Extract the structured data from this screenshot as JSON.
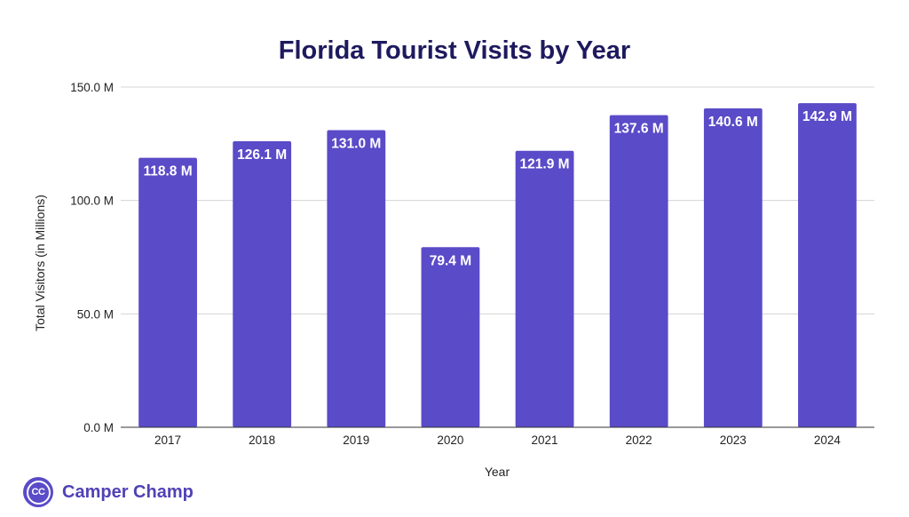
{
  "chart_data": {
    "type": "bar",
    "title": "Florida Tourist Visits by Year",
    "xlabel": "Year",
    "ylabel": "Total Visitors (in Millions)",
    "categories": [
      "2017",
      "2018",
      "2019",
      "2020",
      "2021",
      "2022",
      "2023",
      "2024"
    ],
    "values": [
      118.8,
      126.1,
      131.0,
      79.4,
      121.9,
      137.6,
      140.6,
      142.9
    ],
    "data_labels": [
      "118.8 M",
      "126.1 M",
      "131.0 M",
      "79.4 M",
      "121.9 M",
      "137.6 M",
      "140.6 M",
      "142.9 M"
    ],
    "yticks": [
      0,
      50,
      100,
      150
    ],
    "ytick_labels": [
      "0.0 M",
      "50.0 M",
      "100.0 M",
      "150.0 M"
    ],
    "ylim": [
      0,
      150
    ],
    "grid": true,
    "legend": "none",
    "bar_color": "#5a4bc8"
  },
  "brand": {
    "logo_text": "CC",
    "name": "Camper Champ"
  }
}
